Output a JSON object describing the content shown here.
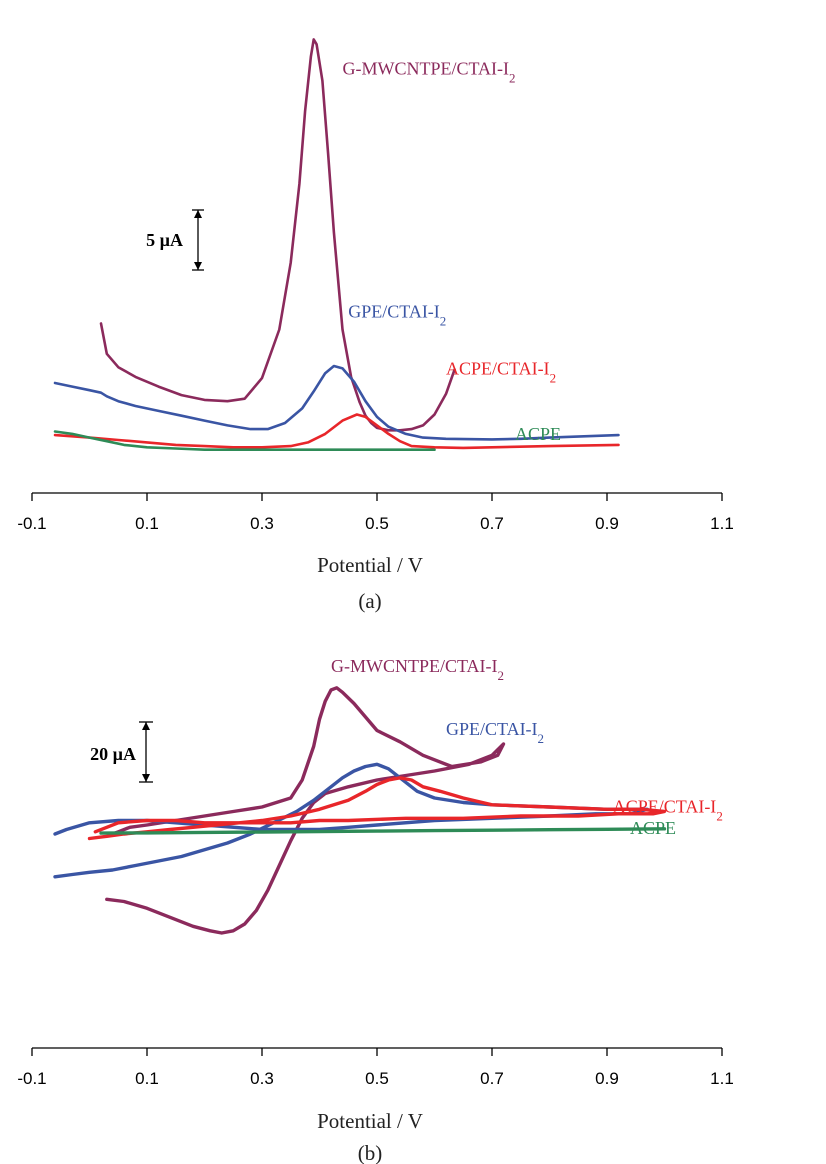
{
  "figure": {
    "panel_a_label": "(a)",
    "panel_b_label": "(b)"
  },
  "colors": {
    "G-MWCNTPE/CTAI-I2": "#8b2a5c",
    "GPE/CTAI-I2": "#3a55a4",
    "ACPE/CTAI-I2": "#e8262a",
    "ACPE": "#2e8b57",
    "axis": "#000000"
  },
  "chart_data": [
    {
      "type": "line",
      "panel": "(a)",
      "xlabel": "Potential / V",
      "ylabel": "",
      "xlim": [
        -0.1,
        1.1
      ],
      "xticks": [
        "-0.1",
        "0.1",
        "0.3",
        "0.5",
        "0.7",
        "0.9",
        "1.1"
      ],
      "ylim": [
        0,
        36
      ],
      "y_unit": "µA (relative, offset)",
      "grid": false,
      "legend": "inline labels next to curves",
      "scale_bar": {
        "label": "5 µA",
        "value": 5
      },
      "series": [
        {
          "name": "G-MWCNTPE/CTAI-I2",
          "label_x": 0.44,
          "label_y": 31.5,
          "x": [
            0.02,
            0.03,
            0.05,
            0.08,
            0.12,
            0.16,
            0.2,
            0.24,
            0.27,
            0.3,
            0.33,
            0.35,
            0.365,
            0.375,
            0.385,
            0.39,
            0.395,
            0.405,
            0.415,
            0.425,
            0.44,
            0.455,
            0.47,
            0.48,
            0.49,
            0.5,
            0.52,
            0.54,
            0.56,
            0.58,
            0.6,
            0.62,
            0.635
          ],
          "y": [
            11.0,
            8.5,
            7.4,
            6.6,
            5.8,
            5.1,
            4.7,
            4.6,
            4.8,
            6.5,
            10.5,
            16.0,
            22.5,
            28.5,
            33.0,
            34.4,
            34.0,
            31.0,
            25.0,
            18.5,
            10.5,
            6.6,
            4.5,
            3.4,
            2.8,
            2.4,
            2.2,
            2.2,
            2.3,
            2.6,
            3.5,
            5.2,
            7.2
          ]
        },
        {
          "name": "GPE/CTAI-I2",
          "label_x": 0.45,
          "label_y": 11.5,
          "x": [
            -0.06,
            -0.03,
            0.0,
            0.02,
            0.03,
            0.05,
            0.08,
            0.12,
            0.16,
            0.2,
            0.24,
            0.28,
            0.31,
            0.34,
            0.37,
            0.39,
            0.41,
            0.425,
            0.44,
            0.46,
            0.48,
            0.5,
            0.52,
            0.55,
            0.58,
            0.62,
            0.7,
            0.75,
            0.8,
            0.92
          ],
          "y": [
            6.1,
            5.8,
            5.5,
            5.3,
            5.0,
            4.6,
            4.2,
            3.8,
            3.4,
            3.0,
            2.6,
            2.3,
            2.3,
            2.8,
            4.0,
            5.4,
            6.9,
            7.5,
            7.3,
            6.2,
            4.6,
            3.3,
            2.5,
            1.9,
            1.6,
            1.5,
            1.45,
            1.5,
            1.6,
            1.8
          ]
        },
        {
          "name": "ACPE/CTAI-I2",
          "label_x": 0.62,
          "label_y": 6.8,
          "x": [
            -0.06,
            0.0,
            0.05,
            0.1,
            0.15,
            0.2,
            0.25,
            0.3,
            0.35,
            0.38,
            0.41,
            0.44,
            0.465,
            0.48,
            0.5,
            0.52,
            0.54,
            0.56,
            0.6,
            0.65,
            0.7,
            0.8,
            0.92
          ],
          "y": [
            1.8,
            1.6,
            1.4,
            1.2,
            1.0,
            0.9,
            0.8,
            0.8,
            0.9,
            1.2,
            1.9,
            3.0,
            3.5,
            3.3,
            2.6,
            1.9,
            1.3,
            0.9,
            0.8,
            0.75,
            0.8,
            0.9,
            1.0
          ]
        },
        {
          "name": "ACPE",
          "label_x": 0.74,
          "label_y": 1.4,
          "x": [
            -0.06,
            -0.03,
            0.0,
            0.03,
            0.06,
            0.1,
            0.15,
            0.2,
            0.3,
            0.4,
            0.5,
            0.6
          ],
          "y": [
            2.1,
            1.9,
            1.6,
            1.3,
            1.0,
            0.8,
            0.7,
            0.6,
            0.6,
            0.6,
            0.6,
            0.6
          ]
        }
      ]
    },
    {
      "type": "line",
      "panel": "(b)",
      "xlabel": "Potential / V",
      "ylabel": "",
      "xlim": [
        -0.1,
        1.1
      ],
      "xticks": [
        "-0.1",
        "0.1",
        "0.3",
        "0.5",
        "0.7",
        "0.9",
        "1.1"
      ],
      "ylim": [
        -80,
        80
      ],
      "y_unit": "µA (relative)",
      "grid": false,
      "legend": "inline labels next to curves",
      "scale_bar": {
        "label": "20 µA",
        "value": 20
      },
      "series": [
        {
          "name": "G-MWCNTPE/CTAI-I2",
          "label_x": 0.42,
          "label_y": 68,
          "x": [
            0.03,
            0.06,
            0.1,
            0.14,
            0.18,
            0.21,
            0.23,
            0.25,
            0.27,
            0.29,
            0.31,
            0.33,
            0.35,
            0.37,
            0.39,
            0.41,
            0.45,
            0.5,
            0.55,
            0.6,
            0.66,
            0.7,
            0.72,
            0.71,
            0.68,
            0.63,
            0.58,
            0.54,
            0.5,
            0.48,
            0.46,
            0.44,
            0.43,
            0.42,
            0.41,
            0.4,
            0.39,
            0.37,
            0.35,
            0.3,
            0.25,
            0.2,
            0.15,
            0.1,
            0.07,
            0.05,
            0.04
          ],
          "y": [
            -33,
            -34,
            -37,
            -41,
            -45,
            -47,
            -48,
            -47,
            -44,
            -38,
            -29,
            -18,
            -7,
            3,
            10,
            14,
            17,
            20,
            22,
            24,
            27,
            31,
            36,
            31,
            28,
            26,
            31,
            37,
            42,
            48,
            54,
            59,
            61,
            60,
            55,
            47,
            35,
            20,
            12,
            8,
            6,
            4,
            2,
            0,
            -1,
            -3,
            -4
          ]
        },
        {
          "name": "GPE/CTAI-I2",
          "label_x": 0.62,
          "label_y": 40,
          "x": [
            -0.06,
            -0.03,
            0.0,
            0.04,
            0.08,
            0.12,
            0.16,
            0.2,
            0.24,
            0.28,
            0.32,
            0.36,
            0.39,
            0.42,
            0.44,
            0.46,
            0.48,
            0.5,
            0.52,
            0.54,
            0.57,
            0.6,
            0.65,
            0.7,
            0.8,
            0.9,
            0.97,
            0.94,
            0.88,
            0.8,
            0.7,
            0.6,
            0.5,
            0.45,
            0.4,
            0.35,
            0.3,
            0.2,
            0.1,
            0.05,
            0.0,
            -0.04,
            -0.06
          ],
          "y": [
            -23,
            -22,
            -21,
            -20,
            -18,
            -16,
            -14,
            -11,
            -8,
            -4,
            1,
            6,
            11,
            17,
            21,
            24,
            26,
            27,
            25,
            21,
            15,
            12,
            10,
            9,
            8,
            7,
            7,
            5,
            5,
            4,
            3,
            2,
            0,
            -1,
            -2,
            -2,
            -2,
            0,
            2,
            2,
            1,
            -2,
            -4
          ]
        },
        {
          "name": "ACPE/CTAI-I2",
          "label_x": 0.91,
          "label_y": 5.5,
          "x": [
            0.0,
            0.03,
            0.06,
            0.1,
            0.14,
            0.18,
            0.22,
            0.26,
            0.3,
            0.35,
            0.4,
            0.45,
            0.48,
            0.5,
            0.52,
            0.54,
            0.56,
            0.58,
            0.61,
            0.65,
            0.7,
            0.8,
            0.9,
            0.96,
            1.0,
            0.98,
            0.92,
            0.85,
            0.75,
            0.65,
            0.55,
            0.45,
            0.4,
            0.35,
            0.3,
            0.25,
            0.2,
            0.15,
            0.1,
            0.05,
            0.03,
            0.01
          ],
          "y": [
            -6,
            -5,
            -4,
            -3,
            -2,
            -1,
            0,
            1,
            2,
            4,
            7,
            11,
            15,
            18,
            20,
            21,
            20,
            17,
            15,
            12,
            9,
            8,
            7,
            7,
            6,
            5,
            5,
            4,
            4,
            3,
            3,
            2,
            2,
            1,
            1,
            1,
            1,
            2,
            2,
            1,
            -1,
            -3
          ]
        },
        {
          "name": "ACPE",
          "label_x": 0.94,
          "label_y": -4,
          "x": [
            0.02,
            0.1,
            0.2,
            0.3,
            0.4,
            0.5,
            0.6,
            0.7,
            0.8,
            0.9,
            1.0
          ],
          "y": [
            -3.6,
            -3.5,
            -3.3,
            -3.1,
            -2.9,
            -2.7,
            -2.5,
            -2.3,
            -2.1,
            -1.9,
            -1.7
          ]
        }
      ]
    }
  ]
}
